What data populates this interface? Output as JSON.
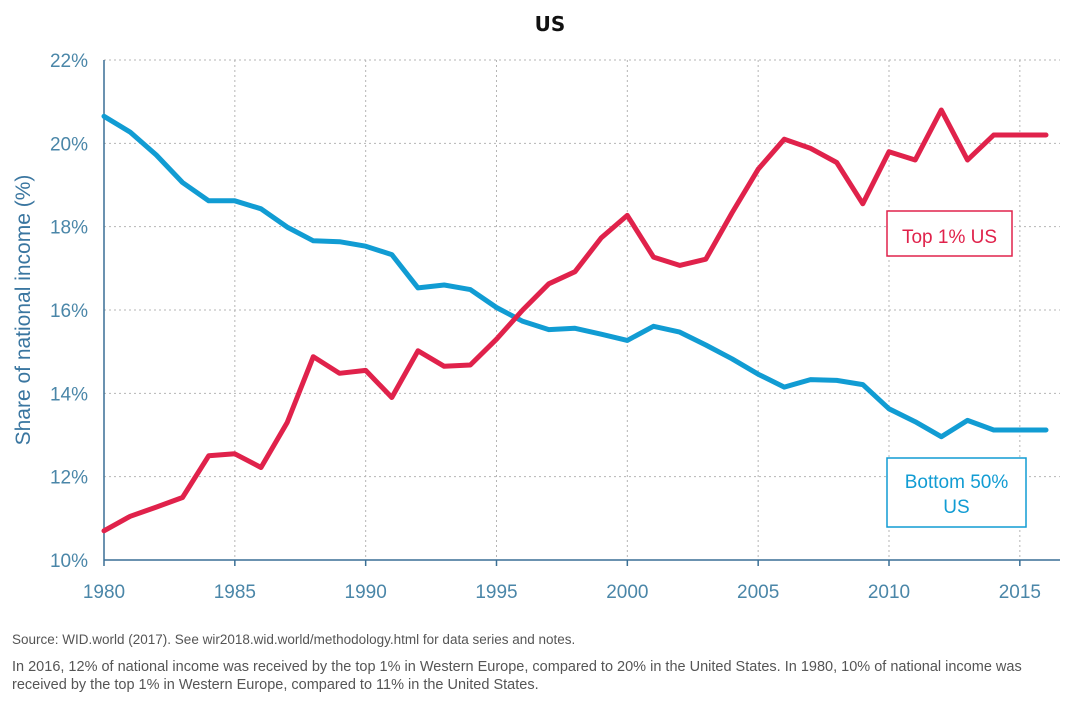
{
  "chart_data": {
    "type": "line",
    "title": "US",
    "xlabel": "",
    "ylabel": "Share of national income (%)",
    "xlim": [
      1980,
      2016
    ],
    "ylim": [
      10,
      22
    ],
    "x_ticks": [
      1980,
      1985,
      1990,
      1995,
      2000,
      2005,
      2010,
      2015
    ],
    "y_ticks": [
      "10%",
      "12%",
      "14%",
      "16%",
      "18%",
      "20%",
      "22%"
    ],
    "grid": true,
    "x": [
      1980,
      1981,
      1982,
      1983,
      1984,
      1985,
      1986,
      1987,
      1988,
      1989,
      1990,
      1991,
      1992,
      1993,
      1994,
      1995,
      1996,
      1997,
      1998,
      1999,
      2000,
      2001,
      2002,
      2003,
      2004,
      2005,
      2006,
      2007,
      2008,
      2009,
      2010,
      2011,
      2012,
      2013,
      2014,
      2015,
      2016
    ],
    "series": [
      {
        "name": "Top 1% US",
        "color": "#e0224b",
        "values": [
          10.7,
          11.05,
          11.27,
          11.5,
          12.5,
          12.55,
          12.22,
          13.3,
          14.88,
          14.48,
          14.55,
          13.9,
          15.02,
          14.65,
          14.68,
          15.3,
          16.0,
          16.63,
          16.92,
          17.73,
          18.27,
          17.27,
          17.07,
          17.22,
          18.33,
          19.38,
          20.1,
          19.88,
          19.54,
          18.55,
          19.8,
          19.6,
          20.8,
          19.6,
          20.2,
          20.2,
          20.2
        ]
      },
      {
        "name": "Bottom 50% US",
        "color": "#119cd3",
        "values": [
          20.65,
          20.27,
          19.72,
          19.06,
          18.62,
          18.62,
          18.43,
          17.99,
          17.66,
          17.64,
          17.53,
          17.33,
          16.53,
          16.6,
          16.49,
          16.06,
          15.73,
          15.53,
          15.56,
          15.42,
          15.27,
          15.61,
          15.47,
          15.16,
          14.83,
          14.46,
          14.15,
          14.33,
          14.31,
          14.21,
          13.63,
          13.32,
          12.96,
          13.35,
          13.12,
          13.12,
          13.12
        ]
      }
    ],
    "series_labels": [
      {
        "lines": [
          "Top 1% US"
        ],
        "color": "#e0224b"
      },
      {
        "lines": [
          "Bottom 50%",
          "US"
        ],
        "color": "#119cd3"
      }
    ]
  },
  "notes": {
    "source": "Source:  WID.world (2017). See wir2018.wid.world/methodology.html for data series and notes.",
    "caption": "In 2016, 12% of national income was received by the top 1% in Western Europe, compared to 20% in the United States. In 1980, 10% of national income was received by the top 1% in Western Europe, compared to 11% in the United States."
  }
}
